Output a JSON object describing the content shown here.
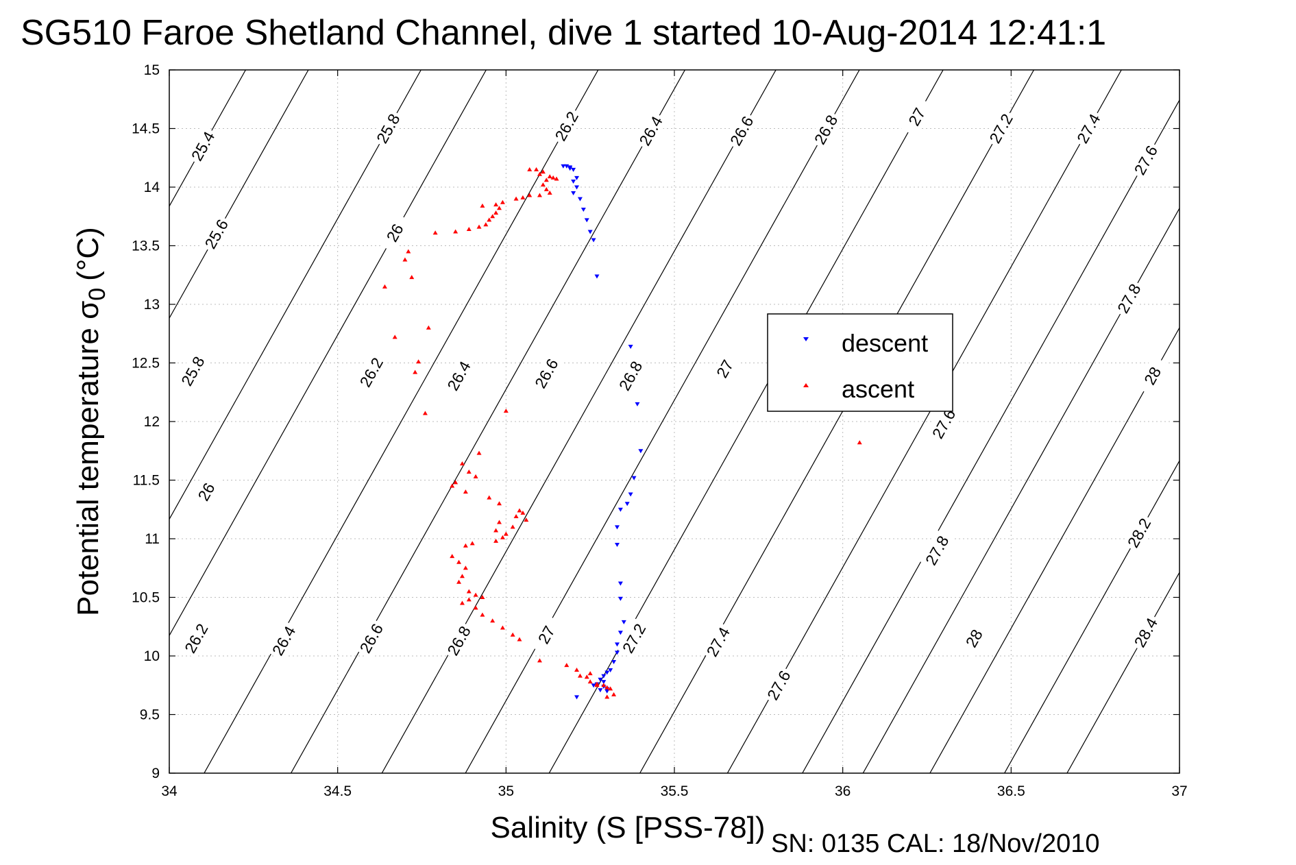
{
  "chart_data": {
    "type": "scatter",
    "title": "SG510 Faroe Shetland Channel, dive 1 started 10-Aug-2014 12:41:1",
    "xlabel": "Salinity (S [PSS-78])",
    "ylabel": "Potential temperature σ",
    "ylabel_subscript": "0",
    "ylabel_units": "(°C)",
    "xlim": [
      34,
      37
    ],
    "ylim": [
      9,
      15
    ],
    "xticks": [
      "34",
      "34.5",
      "35",
      "35.5",
      "36",
      "36.5",
      "37"
    ],
    "yticks": [
      "9",
      "9.5",
      "10",
      "10.5",
      "11",
      "11.5",
      "12",
      "12.5",
      "13",
      "13.5",
      "14",
      "14.5",
      "15"
    ],
    "grid": true,
    "legend_position": "center-right",
    "colors": {
      "descent": "#0000ff",
      "ascent": "#ff0000",
      "contour": "#000000"
    },
    "series": [
      {
        "name": "descent",
        "marker": "down-triangle",
        "points": [
          [
            35.17,
            14.18
          ],
          [
            35.18,
            14.18
          ],
          [
            35.19,
            14.17
          ],
          [
            35.2,
            14.15
          ],
          [
            35.19,
            14.16
          ],
          [
            35.21,
            14.08
          ],
          [
            35.2,
            14.05
          ],
          [
            35.21,
            14.0
          ],
          [
            35.2,
            13.95
          ],
          [
            35.22,
            13.9
          ],
          [
            35.23,
            13.81
          ],
          [
            35.24,
            13.72
          ],
          [
            35.25,
            13.62
          ],
          [
            35.26,
            13.55
          ],
          [
            35.27,
            13.24
          ],
          [
            35.37,
            12.64
          ],
          [
            35.39,
            12.15
          ],
          [
            35.4,
            11.75
          ],
          [
            35.38,
            11.52
          ],
          [
            35.37,
            11.38
          ],
          [
            35.36,
            11.3
          ],
          [
            35.34,
            11.25
          ],
          [
            35.33,
            11.1
          ],
          [
            35.33,
            10.95
          ],
          [
            35.34,
            10.62
          ],
          [
            35.34,
            10.49
          ],
          [
            35.35,
            10.29
          ],
          [
            35.34,
            10.2
          ],
          [
            35.33,
            10.1
          ],
          [
            35.33,
            10.03
          ],
          [
            35.32,
            9.95
          ],
          [
            35.31,
            9.88
          ],
          [
            35.3,
            9.86
          ],
          [
            35.29,
            9.83
          ],
          [
            35.28,
            9.8
          ],
          [
            35.29,
            9.78
          ],
          [
            35.27,
            9.76
          ],
          [
            35.26,
            9.75
          ],
          [
            35.29,
            9.74
          ],
          [
            35.3,
            9.72
          ],
          [
            35.3,
            9.7
          ],
          [
            35.28,
            9.71
          ],
          [
            35.21,
            9.65
          ]
        ]
      },
      {
        "name": "ascent",
        "marker": "up-triangle",
        "points": [
          [
            35.07,
            14.15
          ],
          [
            35.09,
            14.15
          ],
          [
            35.11,
            14.13
          ],
          [
            35.1,
            14.11
          ],
          [
            35.13,
            14.09
          ],
          [
            35.14,
            14.08
          ],
          [
            35.12,
            14.06
          ],
          [
            35.15,
            14.07
          ],
          [
            35.11,
            14.02
          ],
          [
            35.12,
            13.98
          ],
          [
            35.13,
            13.95
          ],
          [
            35.1,
            13.93
          ],
          [
            35.07,
            13.93
          ],
          [
            35.05,
            13.91
          ],
          [
            35.03,
            13.9
          ],
          [
            34.99,
            13.87
          ],
          [
            34.97,
            13.85
          ],
          [
            34.93,
            13.84
          ],
          [
            34.98,
            13.82
          ],
          [
            34.97,
            13.78
          ],
          [
            34.96,
            13.75
          ],
          [
            34.95,
            13.72
          ],
          [
            34.94,
            13.68
          ],
          [
            34.92,
            13.66
          ],
          [
            34.89,
            13.64
          ],
          [
            34.85,
            13.62
          ],
          [
            34.79,
            13.61
          ],
          [
            34.71,
            13.45
          ],
          [
            34.7,
            13.38
          ],
          [
            34.72,
            13.23
          ],
          [
            34.64,
            13.15
          ],
          [
            34.77,
            12.8
          ],
          [
            34.67,
            12.72
          ],
          [
            34.74,
            12.51
          ],
          [
            34.73,
            12.42
          ],
          [
            35.0,
            12.09
          ],
          [
            34.76,
            12.07
          ],
          [
            34.92,
            11.73
          ],
          [
            34.87,
            11.64
          ],
          [
            34.89,
            11.57
          ],
          [
            34.91,
            11.53
          ],
          [
            34.85,
            11.48
          ],
          [
            34.84,
            11.45
          ],
          [
            34.88,
            11.4
          ],
          [
            34.95,
            11.35
          ],
          [
            34.98,
            11.3
          ],
          [
            35.04,
            11.24
          ],
          [
            35.05,
            11.22
          ],
          [
            35.03,
            11.19
          ],
          [
            35.06,
            11.16
          ],
          [
            34.98,
            11.14
          ],
          [
            35.02,
            11.1
          ],
          [
            34.97,
            11.07
          ],
          [
            35.0,
            11.04
          ],
          [
            34.99,
            11.01
          ],
          [
            34.97,
            10.98
          ],
          [
            34.9,
            10.96
          ],
          [
            34.88,
            10.94
          ],
          [
            34.84,
            10.85
          ],
          [
            34.86,
            10.8
          ],
          [
            34.88,
            10.75
          ],
          [
            34.87,
            10.68
          ],
          [
            34.86,
            10.63
          ],
          [
            34.89,
            10.55
          ],
          [
            34.91,
            10.52
          ],
          [
            34.93,
            10.5
          ],
          [
            34.89,
            10.48
          ],
          [
            34.87,
            10.45
          ],
          [
            34.91,
            10.41
          ],
          [
            34.93,
            10.35
          ],
          [
            34.96,
            10.3
          ],
          [
            34.99,
            10.24
          ],
          [
            35.02,
            10.18
          ],
          [
            35.04,
            10.14
          ],
          [
            35.1,
            9.96
          ],
          [
            35.18,
            9.92
          ],
          [
            35.21,
            9.88
          ],
          [
            35.25,
            9.85
          ],
          [
            35.22,
            9.83
          ],
          [
            35.24,
            9.82
          ],
          [
            35.25,
            9.78
          ],
          [
            35.27,
            9.76
          ],
          [
            35.29,
            9.75
          ],
          [
            35.3,
            9.73
          ],
          [
            35.31,
            9.72
          ],
          [
            35.32,
            9.67
          ],
          [
            35.3,
            9.65
          ],
          [
            35.27,
            9.75
          ],
          [
            36.05,
            11.82
          ]
        ]
      }
    ],
    "contours": [
      {
        "level": "25.4",
        "label_at": [
          [
            34.1,
            14.35
          ]
        ]
      },
      {
        "level": "25.6",
        "label_at": [
          [
            34.14,
            13.6
          ]
        ]
      },
      {
        "level": "25.8",
        "label_at": [
          [
            34.65,
            14.5
          ],
          [
            34.07,
            12.43
          ]
        ]
      },
      {
        "level": "26",
        "label_at": [
          [
            34.67,
            13.61
          ],
          [
            34.11,
            11.4
          ]
        ]
      },
      {
        "level": "26.2",
        "label_at": [
          [
            35.18,
            14.52
          ],
          [
            34.6,
            12.42
          ],
          [
            34.08,
            10.15
          ]
        ]
      },
      {
        "level": "26.4",
        "label_at": [
          [
            35.43,
            14.48
          ],
          [
            34.86,
            12.39
          ],
          [
            34.34,
            10.13
          ]
        ]
      },
      {
        "level": "26.6",
        "label_at": [
          [
            35.7,
            14.48
          ],
          [
            35.12,
            12.41
          ],
          [
            34.6,
            10.15
          ]
        ]
      },
      {
        "level": "26.8",
        "label_at": [
          [
            35.95,
            14.49
          ],
          [
            35.37,
            12.39
          ],
          [
            34.86,
            10.13
          ]
        ]
      },
      {
        "level": "27",
        "label_at": [
          [
            36.22,
            14.6
          ],
          [
            35.65,
            12.45
          ],
          [
            35.12,
            10.18
          ]
        ]
      },
      {
        "level": "27.2",
        "label_at": [
          [
            36.47,
            14.5
          ],
          [
            35.38,
            10.15
          ]
        ]
      },
      {
        "level": "27.4",
        "label_at": [
          [
            36.73,
            14.5
          ],
          [
            35.63,
            10.12
          ]
        ]
      },
      {
        "level": "27.6",
        "label_at": [
          [
            36.9,
            14.23
          ],
          [
            36.3,
            11.98
          ],
          [
            35.81,
            9.75
          ]
        ]
      },
      {
        "level": "27.8",
        "label_at": [
          [
            36.85,
            13.05
          ],
          [
            36.28,
            10.9
          ]
        ]
      },
      {
        "level": "28",
        "label_at": [
          [
            36.92,
            12.39
          ],
          [
            36.39,
            10.15
          ]
        ]
      },
      {
        "level": "28.2",
        "label_at": [
          [
            36.88,
            11.05
          ]
        ]
      },
      {
        "level": "28.4",
        "label_at": [
          [
            36.9,
            10.2
          ]
        ]
      }
    ]
  },
  "footer": "SN: 0135  CAL: 18/Nov/2010"
}
